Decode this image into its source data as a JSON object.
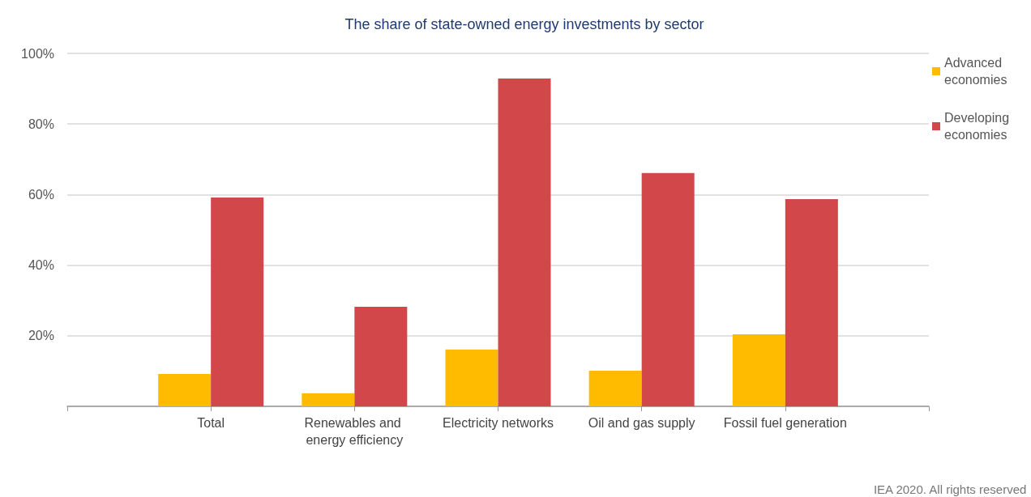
{
  "chart_data": {
    "type": "bar",
    "title": "The share of state-owned energy investments by sector",
    "categories": [
      null,
      "Total",
      "Renewables and energy efficiency",
      "Electricity networks",
      "Oil and gas supply",
      "Fossil fuel generation",
      null
    ],
    "series": [
      {
        "name": "Advanced economies",
        "color": "#ffbb00",
        "values": [
          null,
          9.2,
          3.7,
          16.1,
          10.1,
          20.4,
          null
        ]
      },
      {
        "name": "Developing economies",
        "color": "#d1474a",
        "values": [
          null,
          59.2,
          28.2,
          92.9,
          66.1,
          58.7,
          null
        ]
      }
    ],
    "ylim": [
      0,
      100
    ],
    "yticks": [
      {
        "value": 0,
        "label": null
      },
      {
        "value": 20,
        "label": "20%"
      },
      {
        "value": 40,
        "label": "40%"
      },
      {
        "value": 60,
        "label": "60%"
      },
      {
        "value": 80,
        "label": "80%"
      },
      {
        "value": 100,
        "label": "100%"
      }
    ],
    "grid": "y",
    "legend": "top right",
    "annotations": [
      "IEA 2020. All rights reserved"
    ]
  }
}
